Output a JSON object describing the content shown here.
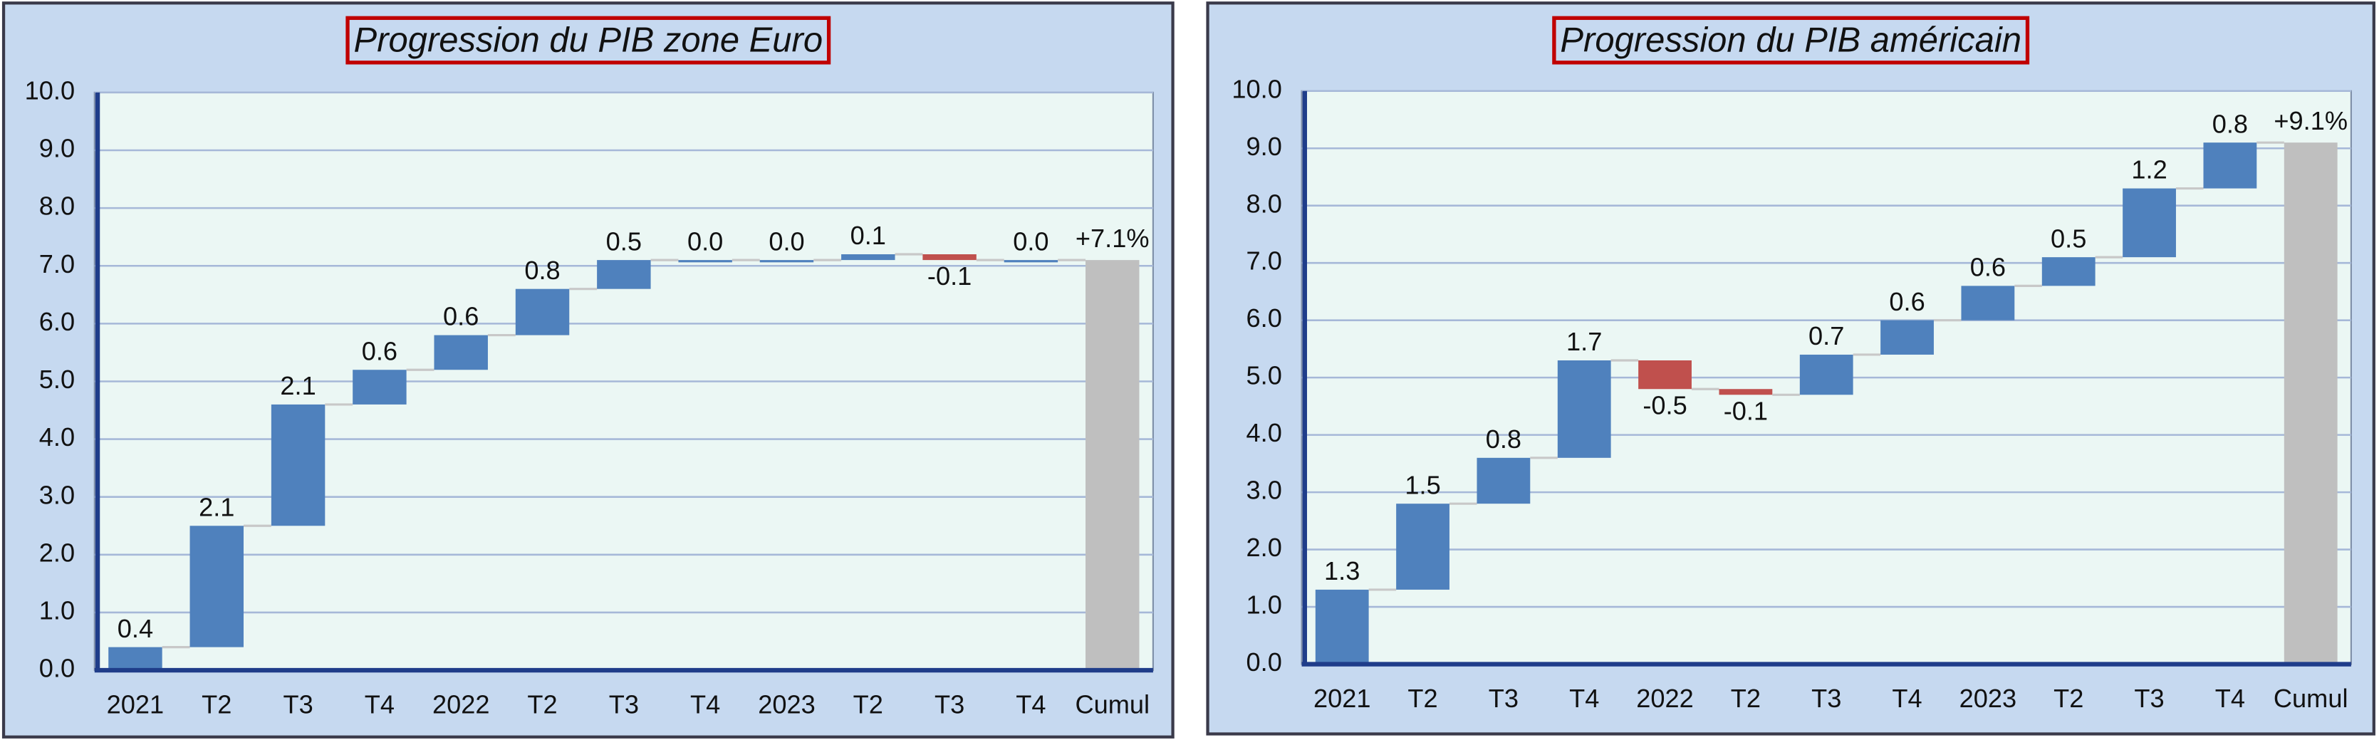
{
  "chart_data": [
    {
      "type": "waterfall",
      "title": "Progression du PIB zone Euro",
      "categories": [
        "2021",
        "T2",
        "T3",
        "T4",
        "2022",
        "T2",
        "T3",
        "T4",
        "2023",
        "T2",
        "T3",
        "T4"
      ],
      "values": [
        0.4,
        2.1,
        2.1,
        0.6,
        0.6,
        0.8,
        0.5,
        0.0,
        0.0,
        0.1,
        -0.1,
        0.0
      ],
      "value_labels": [
        "0.4",
        "2.1",
        "2.1",
        "0.6",
        "0.6",
        "0.8",
        "0.5",
        "0.0",
        "0.0",
        "0.1",
        "-0.1",
        "0.0"
      ],
      "total": {
        "label": "Cumul",
        "value": 7.1,
        "value_label": "+7.1%"
      },
      "colors": {
        "increase": "#4f81bd",
        "decrease": "#c0504d",
        "total": "#bfbfbf"
      },
      "ylim": [
        0,
        10
      ],
      "yticks": [
        {
          "value": 0,
          "label": "0.0"
        },
        {
          "value": 1,
          "label": "1.0"
        },
        {
          "value": 2,
          "label": "2.0"
        },
        {
          "value": 3,
          "label": "3.0"
        },
        {
          "value": 4,
          "label": "4.0"
        },
        {
          "value": 5,
          "label": "5.0"
        },
        {
          "value": 6,
          "label": "6.0"
        },
        {
          "value": 7,
          "label": "7.0"
        },
        {
          "value": 8,
          "label": "8.0"
        },
        {
          "value": 9,
          "label": "9.0"
        },
        {
          "value": 10,
          "label": "10.0"
        }
      ],
      "grid": true
    },
    {
      "type": "waterfall",
      "title": "Progression du PIB américain",
      "categories": [
        "2021",
        "T2",
        "T3",
        "T4",
        "2022",
        "T2",
        "T3",
        "T4",
        "2023",
        "T2",
        "T3",
        "T4"
      ],
      "values": [
        1.3,
        1.5,
        0.8,
        1.7,
        -0.5,
        -0.1,
        0.7,
        0.6,
        0.6,
        0.5,
        1.2,
        0.8
      ],
      "value_labels": [
        "1.3",
        "1.5",
        "0.8",
        "1.7",
        "-0.5",
        "-0.1",
        "0.7",
        "0.6",
        "0.6",
        "0.5",
        "1.2",
        "0.8"
      ],
      "total": {
        "label": "Cumul",
        "value": 9.1,
        "value_label": "+9.1%"
      },
      "colors": {
        "increase": "#4f81bd",
        "decrease": "#c0504d",
        "total": "#bfbfbf"
      },
      "ylim": [
        0,
        10
      ],
      "yticks": [
        {
          "value": 0,
          "label": "0.0"
        },
        {
          "value": 1,
          "label": "1.0"
        },
        {
          "value": 2,
          "label": "2.0"
        },
        {
          "value": 3,
          "label": "3.0"
        },
        {
          "value": 4,
          "label": "4.0"
        },
        {
          "value": 5,
          "label": "5.0"
        },
        {
          "value": 6,
          "label": "6.0"
        },
        {
          "value": 7,
          "label": "7.0"
        },
        {
          "value": 8,
          "label": "8.0"
        },
        {
          "value": 9,
          "label": "9.0"
        },
        {
          "value": 10,
          "label": "10.0"
        }
      ],
      "grid": true
    }
  ]
}
